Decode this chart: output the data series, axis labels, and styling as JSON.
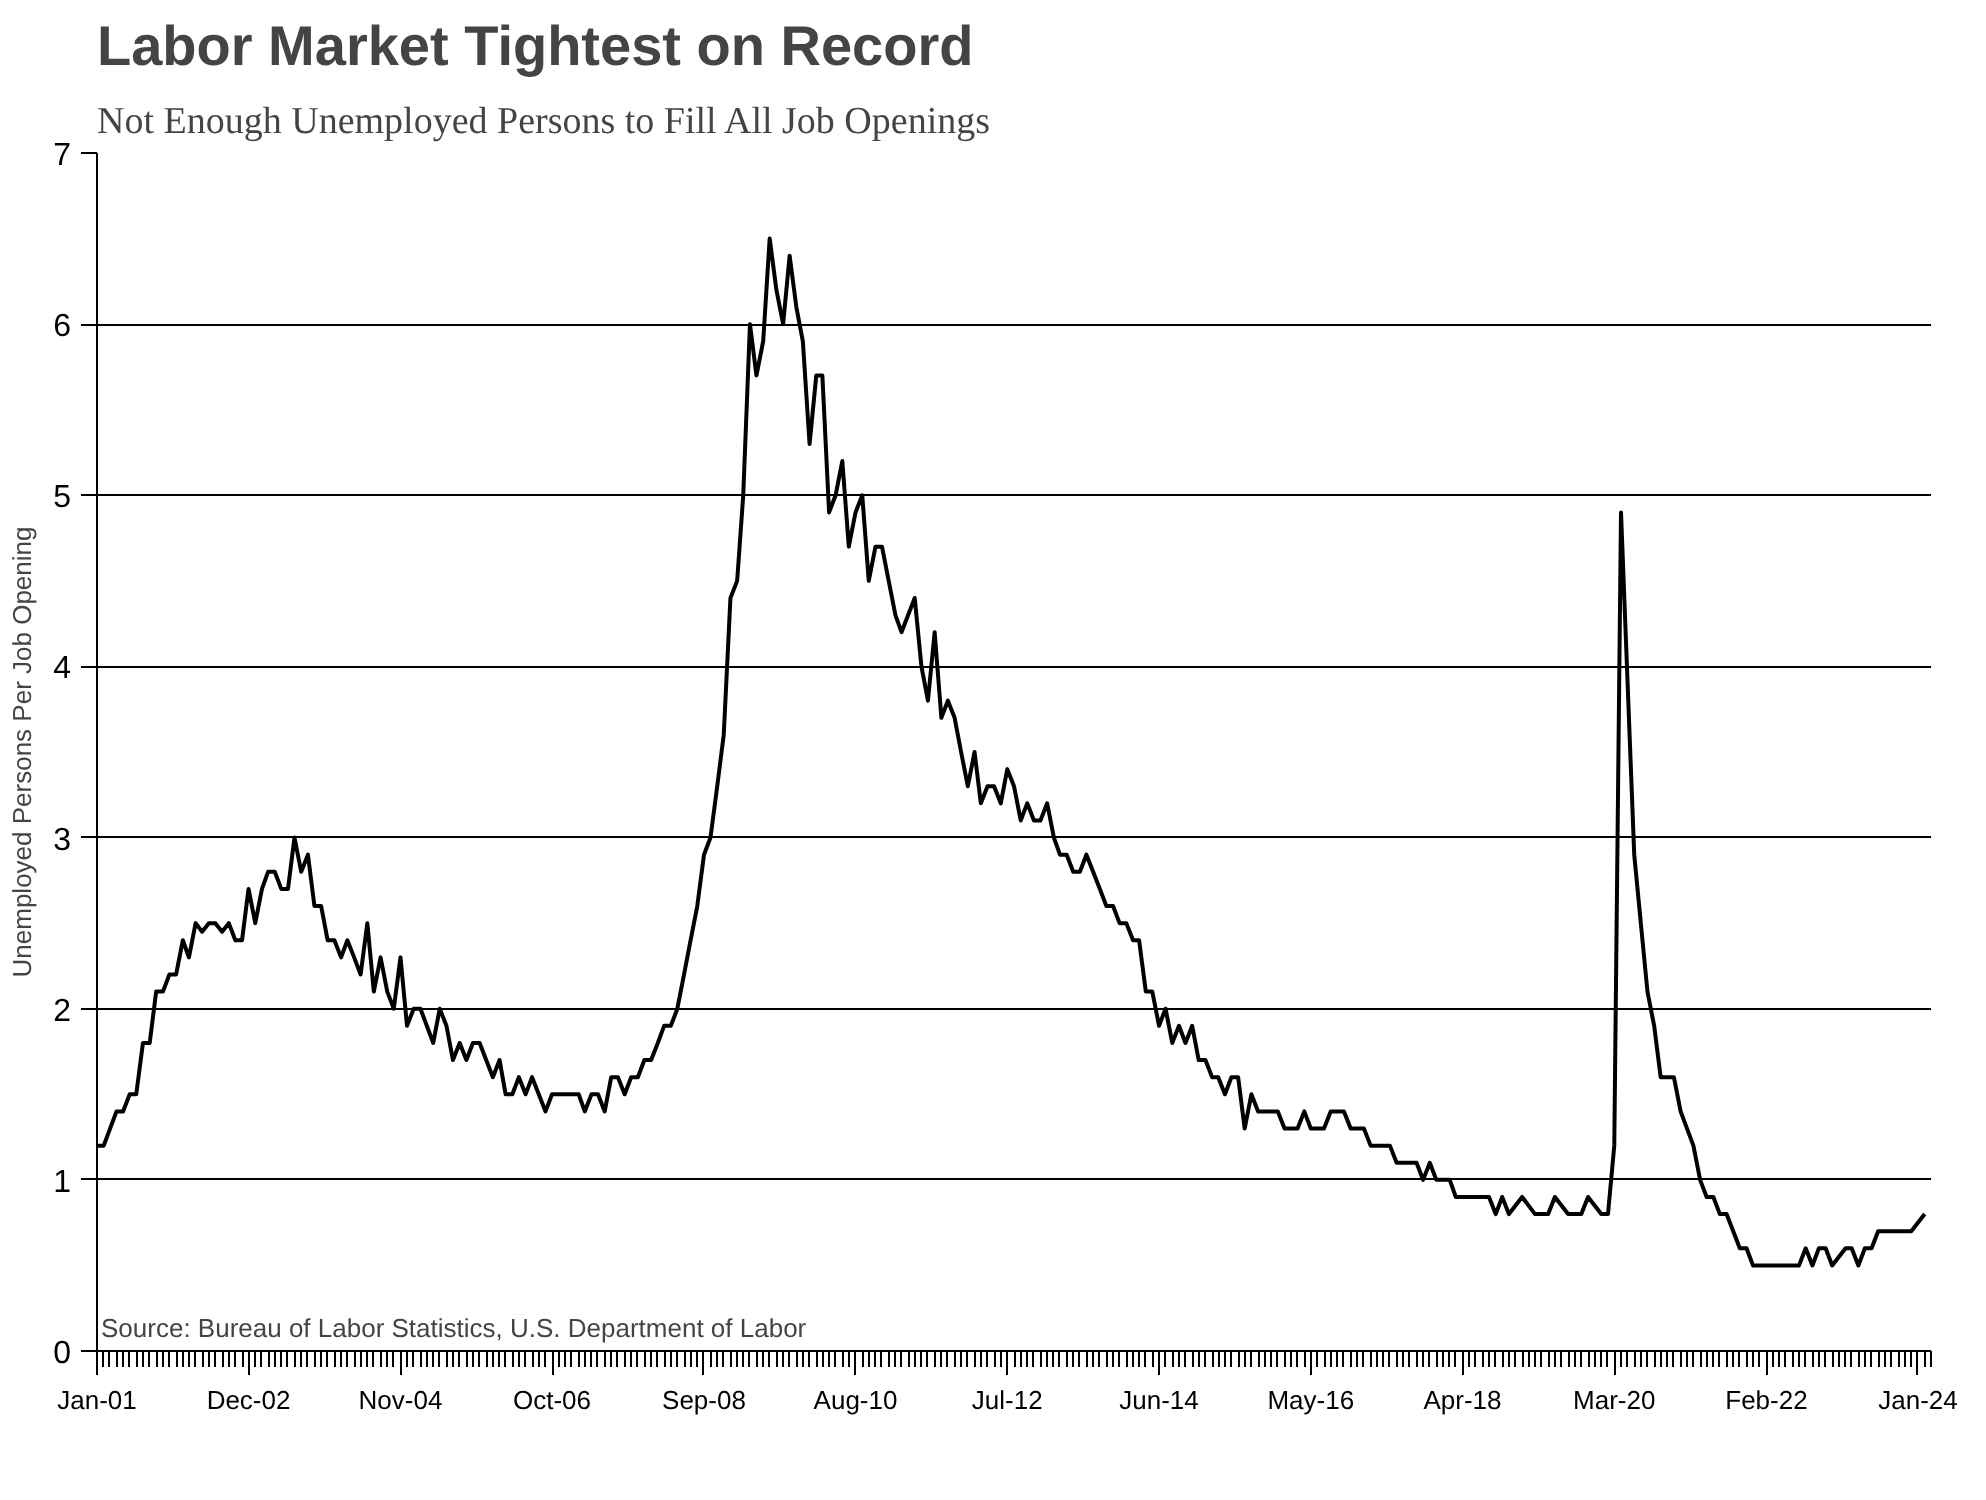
{
  "chart_data": {
    "type": "line",
    "title": "Labor Market Tightest on Record",
    "subtitle": "Not Enough Unemployed Persons to Fill All Job Openings",
    "ylabel": "Unemployed Persons Per Job Opening",
    "annotations": [
      "Source: Bureau of Labor Statistics, U.S. Department of Labor"
    ],
    "x": [
      "2001-01",
      "2001-02",
      "2001-04",
      "2001-05",
      "2001-06",
      "2001-07",
      "2001-08",
      "2001-09",
      "2001-10",
      "2001-11",
      "2001-12",
      "2002-01",
      "2002-02",
      "2002-03",
      "2002-04",
      "2002-05",
      "2002-06",
      "2002-07",
      "2002-08",
      "2002-09",
      "2002-10",
      "2002-11",
      "2002-12",
      "2003-01",
      "2003-02",
      "2003-03",
      "2003-04",
      "2003-05",
      "2003-06",
      "2003-07",
      "2003-08",
      "2003-09",
      "2003-10",
      "2003-11",
      "2003-12",
      "2004-01",
      "2004-02",
      "2004-03",
      "2004-04",
      "2004-05",
      "2004-06",
      "2004-07",
      "2004-08",
      "2004-09",
      "2004-10",
      "2004-11",
      "2004-12",
      "2005-01",
      "2005-02",
      "2005-04",
      "2005-05",
      "2005-06",
      "2005-07",
      "2005-08",
      "2005-09",
      "2005-10",
      "2005-11",
      "2006-01",
      "2006-02",
      "2006-03",
      "2006-04",
      "2006-05",
      "2006-06",
      "2006-07",
      "2006-09",
      "2006-10",
      "2007-02",
      "2007-03",
      "2007-04",
      "2007-05",
      "2007-06",
      "2007-07",
      "2007-08",
      "2007-09",
      "2007-10",
      "2007-11",
      "2007-12",
      "2008-01",
      "2008-02",
      "2008-03",
      "2008-04",
      "2008-05",
      "2008-06",
      "2008-07",
      "2008-08",
      "2008-09",
      "2008-10",
      "2008-11",
      "2008-12",
      "2009-01",
      "2009-02",
      "2009-03",
      "2009-04",
      "2009-05",
      "2009-06",
      "2009-07",
      "2009-08",
      "2009-09",
      "2009-10",
      "2009-11",
      "2009-12",
      "2010-01",
      "2010-02",
      "2010-03",
      "2010-04",
      "2010-05",
      "2010-06",
      "2010-07",
      "2010-08",
      "2010-09",
      "2010-10",
      "2010-11",
      "2010-12",
      "2011-01",
      "2011-02",
      "2011-03",
      "2011-05",
      "2011-06",
      "2011-07",
      "2011-08",
      "2011-09",
      "2011-10",
      "2011-11",
      "2011-12",
      "2012-01",
      "2012-02",
      "2012-03",
      "2012-04",
      "2012-05",
      "2012-06",
      "2012-07",
      "2012-08",
      "2012-09",
      "2012-10",
      "2012-11",
      "2012-12",
      "2013-01",
      "2013-02",
      "2013-03",
      "2013-04",
      "2013-05",
      "2013-06",
      "2013-07",
      "2013-08",
      "2013-09",
      "2013-10",
      "2013-11",
      "2013-12",
      "2014-01",
      "2014-02",
      "2014-03",
      "2014-04",
      "2014-05",
      "2014-06",
      "2014-07",
      "2014-08",
      "2014-09",
      "2014-10",
      "2014-11",
      "2014-12",
      "2015-01",
      "2015-02",
      "2015-03",
      "2015-04",
      "2015-05",
      "2015-06",
      "2015-07",
      "2015-08",
      "2015-09",
      "2015-12",
      "2016-01",
      "2016-03",
      "2016-04",
      "2016-05",
      "2016-07",
      "2016-08",
      "2016-10",
      "2016-11",
      "2017-01",
      "2017-02",
      "2017-05",
      "2017-06",
      "2017-09",
      "2017-10",
      "2017-11",
      "2017-12",
      "2018-02",
      "2018-03",
      "2018-08",
      "2018-09",
      "2018-10",
      "2018-11",
      "2019-01",
      "2019-03",
      "2019-05",
      "2019-06",
      "2019-08",
      "2019-10",
      "2019-11",
      "2020-01",
      "2020-02",
      "2020-03",
      "2020-04",
      "2020-06",
      "2020-08",
      "2020-09",
      "2020-10",
      "2020-12",
      "2021-01",
      "2021-03",
      "2021-04",
      "2021-05",
      "2021-06",
      "2021-07",
      "2021-08",
      "2021-10",
      "2021-11",
      "2021-12",
      "2022-01",
      "2022-02",
      "2022-07",
      "2022-08",
      "2022-09",
      "2022-10",
      "2022-11",
      "2022-12",
      "2023-02",
      "2023-03",
      "2023-04",
      "2023-05",
      "2023-06",
      "2023-07",
      "2023-12",
      "2024-02"
    ],
    "series": [
      {
        "color": "#000000",
        "values": [
          1.2,
          1.2,
          1.4,
          1.4,
          1.5,
          1.5,
          1.8,
          1.8,
          2.1,
          2.1,
          2.2,
          2.2,
          2.4,
          2.3,
          2.5,
          2.45,
          2.5,
          2.5,
          2.45,
          2.5,
          2.4,
          2.4,
          2.7,
          2.5,
          2.7,
          2.8,
          2.8,
          2.7,
          2.7,
          3.0,
          2.8,
          2.9,
          2.6,
          2.6,
          2.4,
          2.4,
          2.3,
          2.4,
          2.3,
          2.2,
          2.5,
          2.1,
          2.3,
          2.1,
          2.0,
          2.3,
          1.9,
          2.0,
          2.0,
          1.8,
          2.0,
          1.9,
          1.7,
          1.8,
          1.7,
          1.8,
          1.8,
          1.6,
          1.7,
          1.5,
          1.5,
          1.6,
          1.5,
          1.6,
          1.4,
          1.5,
          1.5,
          1.4,
          1.5,
          1.5,
          1.4,
          1.6,
          1.6,
          1.5,
          1.6,
          1.6,
          1.7,
          1.7,
          1.8,
          1.9,
          1.9,
          2.0,
          2.2,
          2.4,
          2.6,
          2.9,
          3.0,
          3.3,
          3.6,
          4.4,
          4.5,
          5.0,
          6.0,
          5.7,
          5.9,
          6.5,
          6.2,
          6.0,
          6.4,
          6.1,
          5.9,
          5.3,
          5.7,
          5.7,
          4.9,
          5.0,
          5.2,
          4.7,
          4.9,
          5.0,
          4.5,
          4.7,
          4.7,
          4.5,
          4.3,
          4.2,
          4.4,
          4.0,
          3.8,
          4.2,
          3.7,
          3.8,
          3.7,
          3.5,
          3.3,
          3.5,
          3.2,
          3.3,
          3.3,
          3.2,
          3.4,
          3.3,
          3.1,
          3.2,
          3.1,
          3.1,
          3.2,
          3.0,
          2.9,
          2.9,
          2.8,
          2.8,
          2.9,
          2.8,
          2.7,
          2.6,
          2.6,
          2.5,
          2.5,
          2.4,
          2.4,
          2.1,
          2.1,
          1.9,
          2.0,
          1.8,
          1.9,
          1.8,
          1.9,
          1.7,
          1.7,
          1.6,
          1.6,
          1.5,
          1.6,
          1.6,
          1.3,
          1.5,
          1.4,
          1.4,
          1.3,
          1.3,
          1.4,
          1.3,
          1.3,
          1.4,
          1.4,
          1.3,
          1.3,
          1.2,
          1.2,
          1.1,
          1.1,
          1.0,
          1.1,
          1.0,
          1.0,
          0.9,
          0.9,
          0.8,
          0.9,
          0.8,
          0.9,
          0.8,
          0.8,
          0.9,
          0.8,
          0.8,
          0.9,
          0.8,
          0.8,
          1.2,
          4.9,
          2.9,
          2.1,
          1.9,
          1.6,
          1.6,
          1.4,
          1.2,
          1.0,
          0.9,
          0.9,
          0.8,
          0.8,
          0.6,
          0.6,
          0.5,
          0.5,
          0.5,
          0.5,
          0.6,
          0.5,
          0.6,
          0.6,
          0.5,
          0.6,
          0.6,
          0.5,
          0.6,
          0.6,
          0.7,
          0.7,
          0.8
        ]
      }
    ],
    "xlim": [
      "2001-01",
      "2024-03"
    ],
    "xticks": [
      {
        "value": "2001-01",
        "label": "Jan-01"
      },
      {
        "value": "2002-12",
        "label": "Dec-02"
      },
      {
        "value": "2004-11",
        "label": "Nov-04"
      },
      {
        "value": "2006-10",
        "label": "Oct-06"
      },
      {
        "value": "2008-09",
        "label": "Sep-08"
      },
      {
        "value": "2010-08",
        "label": "Aug-10"
      },
      {
        "value": "2012-07",
        "label": "Jul-12"
      },
      {
        "value": "2014-06",
        "label": "Jun-14"
      },
      {
        "value": "2016-05",
        "label": "May-16"
      },
      {
        "value": "2018-04",
        "label": "Apr-18"
      },
      {
        "value": "2020-03",
        "label": "Mar-20"
      },
      {
        "value": "2022-02",
        "label": "Feb-22"
      },
      {
        "value": "2024-01",
        "label": "Jan-24"
      }
    ],
    "ylim": [
      0,
      7
    ],
    "yticks": [
      0,
      1,
      2,
      3,
      4,
      5,
      6,
      7
    ],
    "grid": "y"
  }
}
